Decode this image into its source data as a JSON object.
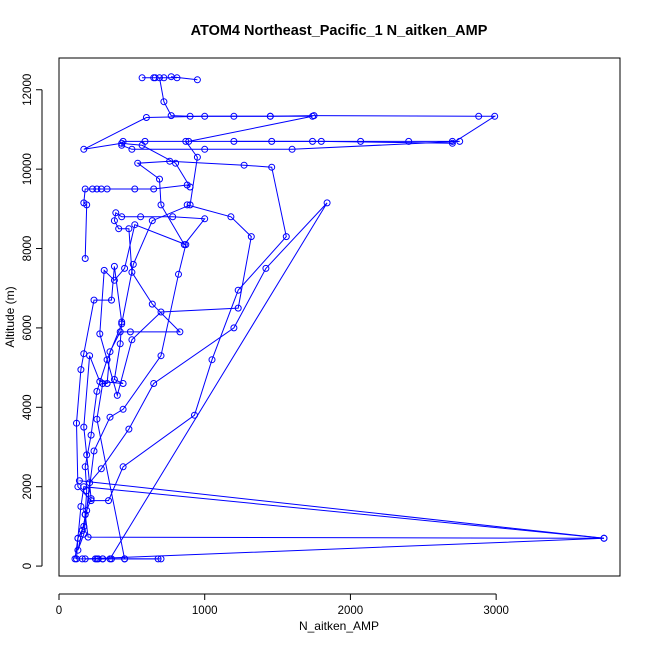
{
  "chart_data": {
    "type": "line",
    "title": "ATOM4 Northeast_Pacific_1 N_aitken_AMP",
    "xlabel": "N_aitken_AMP",
    "ylabel": "Altitude (m)",
    "xlim": [
      0,
      3850
    ],
    "ylim": [
      -250,
      12800
    ],
    "xticks": [
      0,
      1000,
      2000,
      3000
    ],
    "yticks": [
      0,
      2000,
      4000,
      6000,
      8000,
      10000,
      12000
    ],
    "grid": false,
    "color": "#0000ff",
    "series": [
      {
        "points": [
          [
            680,
            180
          ],
          [
            450,
            180
          ],
          [
            360,
            180
          ],
          [
            300,
            180
          ],
          [
            270,
            180
          ],
          [
            160,
            180
          ],
          [
            120,
            180
          ],
          [
            130,
            700
          ],
          [
            150,
            1500
          ],
          [
            170,
            2000
          ],
          [
            3740,
            700
          ],
          [
            200,
            730
          ],
          [
            180,
            1300
          ],
          [
            190,
            1900
          ],
          [
            180,
            2500
          ],
          [
            220,
            3300
          ],
          [
            260,
            4400
          ],
          [
            330,
            5200
          ],
          [
            430,
            6100
          ],
          [
            510,
            7600
          ],
          [
            640,
            8700
          ],
          [
            900,
            9100
          ],
          [
            950,
            10300
          ],
          [
            870,
            10700
          ],
          [
            1460,
            10700
          ],
          [
            1740,
            10700
          ],
          [
            2070,
            10700
          ],
          [
            2400,
            10700
          ],
          [
            2700,
            10700
          ],
          [
            2750,
            10700
          ],
          [
            1600,
            10500
          ],
          [
            1000,
            10500
          ],
          [
            500,
            10500
          ],
          [
            430,
            10600
          ],
          [
            440,
            10700
          ],
          [
            590,
            10700
          ],
          [
            890,
            10700
          ],
          [
            1740,
            11330
          ],
          [
            1450,
            11330
          ],
          [
            1200,
            11330
          ],
          [
            900,
            11330
          ],
          [
            770,
            11350
          ],
          [
            720,
            11700
          ],
          [
            690,
            12300
          ],
          [
            650,
            12300
          ],
          [
            570,
            12300
          ],
          [
            660,
            12300
          ],
          [
            720,
            12300
          ],
          [
            810,
            12300
          ],
          [
            770,
            12330
          ],
          [
            950,
            12250
          ]
        ]
      },
      {
        "points": [
          [
            180,
            7750
          ],
          [
            190,
            9100
          ],
          [
            170,
            9150
          ],
          [
            180,
            9500
          ],
          [
            230,
            9500
          ],
          [
            260,
            9500
          ],
          [
            290,
            9500
          ],
          [
            330,
            9500
          ],
          [
            520,
            9500
          ],
          [
            650,
            9500
          ],
          [
            880,
            9600
          ],
          [
            900,
            9550
          ],
          [
            800,
            10150
          ],
          [
            570,
            10600
          ],
          [
            430,
            10650
          ],
          [
            170,
            10500
          ],
          [
            600,
            11300
          ],
          [
            1000,
            11330
          ],
          [
            1450,
            11330
          ],
          [
            1750,
            11350
          ],
          [
            2880,
            11330
          ],
          [
            2990,
            11330
          ],
          [
            2700,
            10650
          ],
          [
            1800,
            10700
          ],
          [
            1200,
            10700
          ]
        ]
      },
      {
        "points": [
          [
            700,
            180
          ],
          [
            260,
            180
          ],
          [
            300,
            180
          ],
          [
            450,
            180
          ],
          [
            260,
            3700
          ],
          [
            300,
            4600
          ],
          [
            330,
            4600
          ],
          [
            350,
            5400
          ],
          [
            420,
            5900
          ],
          [
            490,
            5900
          ],
          [
            830,
            5900
          ],
          [
            640,
            6600
          ],
          [
            500,
            7400
          ],
          [
            480,
            8500
          ],
          [
            410,
            8500
          ],
          [
            380,
            8700
          ],
          [
            390,
            8900
          ],
          [
            430,
            8800
          ],
          [
            560,
            8800
          ],
          [
            780,
            8800
          ],
          [
            1000,
            8750
          ],
          [
            860,
            8100
          ],
          [
            700,
            9100
          ],
          [
            690,
            9750
          ],
          [
            540,
            10150
          ],
          [
            760,
            10200
          ],
          [
            1270,
            10100
          ],
          [
            1460,
            10050
          ],
          [
            1560,
            8300
          ],
          [
            1230,
            6950
          ],
          [
            1050,
            5200
          ],
          [
            930,
            3800
          ],
          [
            440,
            2500
          ],
          [
            340,
            1650
          ],
          [
            220,
            1650
          ],
          [
            130,
            2000
          ],
          [
            120,
            3600
          ],
          [
            150,
            4950
          ],
          [
            170,
            5350
          ],
          [
            240,
            6700
          ],
          [
            360,
            6700
          ],
          [
            380,
            7550
          ],
          [
            430,
            6150
          ],
          [
            420,
            5600
          ],
          [
            380,
            4700
          ],
          [
            440,
            4600
          ],
          [
            280,
            4650
          ],
          [
            210,
            5300
          ],
          [
            170,
            3500
          ],
          [
            190,
            2800
          ],
          [
            220,
            1700
          ],
          [
            180,
            1300
          ],
          [
            170,
            1000
          ],
          [
            130,
            700
          ],
          [
            110,
            180
          ]
        ]
      },
      {
        "points": [
          [
            140,
            2150
          ],
          [
            3740,
            700
          ],
          [
            180,
            180
          ],
          [
            250,
            180
          ],
          [
            350,
            180
          ],
          [
            1840,
            9150
          ],
          [
            1420,
            7500
          ],
          [
            1200,
            6000
          ],
          [
            650,
            4600
          ],
          [
            480,
            3450
          ],
          [
            290,
            2450
          ],
          [
            210,
            2100
          ],
          [
            190,
            1400
          ],
          [
            160,
            900
          ],
          [
            130,
            400
          ],
          [
            170,
            800
          ],
          [
            240,
            2900
          ],
          [
            350,
            3750
          ],
          [
            440,
            3950
          ],
          [
            700,
            5300
          ],
          [
            820,
            7350
          ],
          [
            870,
            8100
          ],
          [
            520,
            8600
          ],
          [
            450,
            7500
          ],
          [
            380,
            7200
          ],
          [
            310,
            7450
          ],
          [
            280,
            5850
          ],
          [
            400,
            4300
          ],
          [
            500,
            5700
          ],
          [
            700,
            6400
          ],
          [
            1230,
            6500
          ],
          [
            1320,
            8300
          ],
          [
            1180,
            8800
          ],
          [
            880,
            9100
          ]
        ]
      }
    ]
  }
}
